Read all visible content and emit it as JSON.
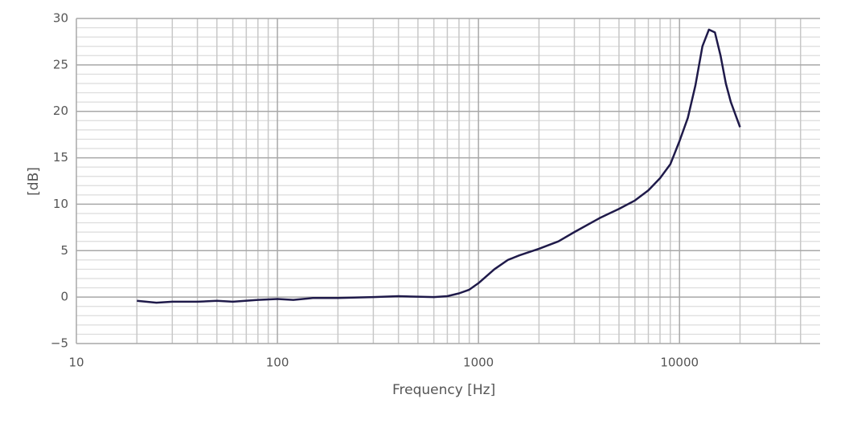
{
  "chart_data": {
    "type": "line",
    "xlabel": "Frequency [Hz]",
    "ylabel": "[dB]",
    "x": [
      20,
      25,
      30,
      40,
      50,
      60,
      80,
      100,
      120,
      150,
      200,
      300,
      400,
      600,
      700,
      800,
      900,
      1000,
      1200,
      1400,
      1600,
      2000,
      2500,
      3000,
      4000,
      5000,
      6000,
      7000,
      8000,
      9000,
      10000,
      11000,
      12000,
      13000,
      14000,
      15000,
      16000,
      17000,
      18000,
      20000
    ],
    "values": [
      -0.4,
      -0.6,
      -0.5,
      -0.5,
      -0.4,
      -0.5,
      -0.3,
      -0.2,
      -0.3,
      -0.1,
      -0.1,
      0,
      0.1,
      0,
      0.1,
      0.4,
      0.8,
      1.5,
      3,
      4,
      4.5,
      5.2,
      6,
      7,
      8.5,
      9.5,
      10.4,
      11.5,
      12.8,
      14.3,
      16.8,
      19.3,
      22.8,
      27,
      28.8,
      28.5,
      26,
      23,
      21,
      18.3
    ],
    "color": "#1f1a4a",
    "xscale": "log",
    "xlim": [
      10,
      50000
    ],
    "xticks": [
      10,
      100,
      1000,
      10000
    ],
    "xminor_ticks": [
      20,
      30,
      40,
      50,
      60,
      70,
      80,
      90,
      200,
      300,
      400,
      500,
      600,
      700,
      800,
      900,
      2000,
      3000,
      4000,
      5000,
      6000,
      7000,
      8000,
      9000,
      20000,
      30000,
      40000
    ],
    "ylim": [
      -5,
      30
    ],
    "yticks": [
      {
        "value": -5,
        "label": "−5"
      },
      0,
      5,
      10,
      15,
      20,
      25,
      30
    ],
    "yminor_ticks": [
      -4,
      -3,
      -2,
      -1,
      1,
      2,
      3,
      4,
      6,
      7,
      8,
      9,
      11,
      12,
      13,
      14,
      16,
      17,
      18,
      19,
      21,
      22,
      23,
      24,
      26,
      27,
      28,
      29
    ],
    "grid": true
  }
}
